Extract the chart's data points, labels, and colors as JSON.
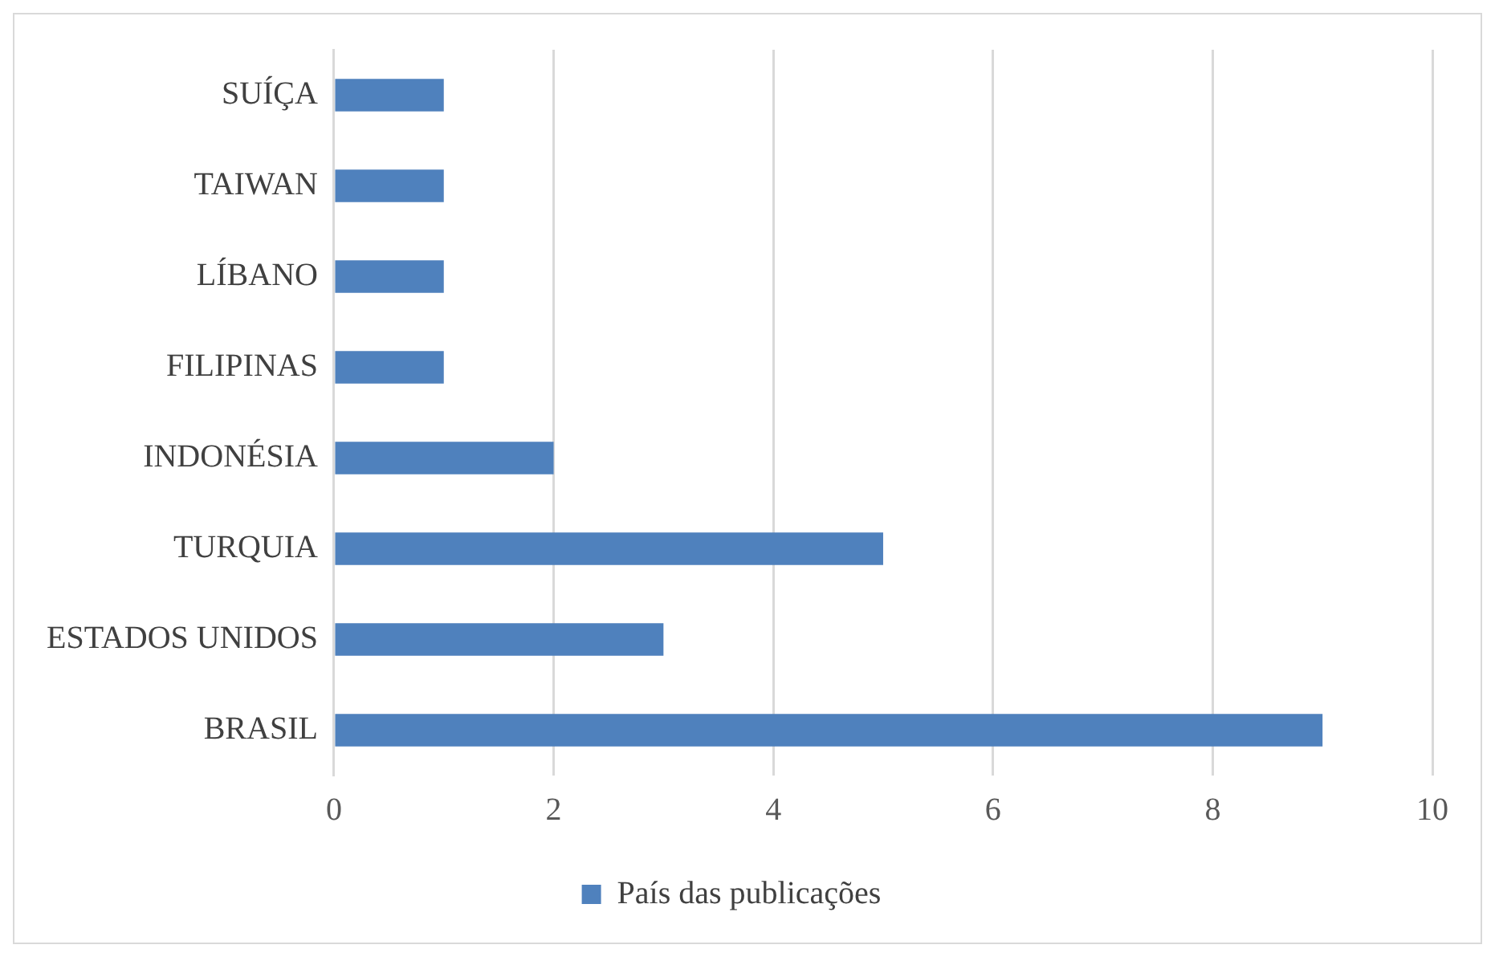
{
  "chart_data": {
    "type": "bar",
    "orientation": "horizontal",
    "categories": [
      "SUÍÇA",
      "TAIWAN",
      "LÍBANO",
      "FILIPINAS",
      "INDONÉSIA",
      "TURQUIA",
      "ESTADOS UNIDOS",
      "BRASIL"
    ],
    "series": [
      {
        "name": "País das publicações",
        "color": "#4f81bd",
        "values": [
          1,
          1,
          1,
          1,
          2,
          5,
          3,
          9
        ]
      }
    ],
    "xlim": [
      0,
      10
    ],
    "xticks": [
      0,
      2,
      4,
      6,
      8,
      10
    ],
    "grid": "x",
    "legend": "bottom"
  }
}
